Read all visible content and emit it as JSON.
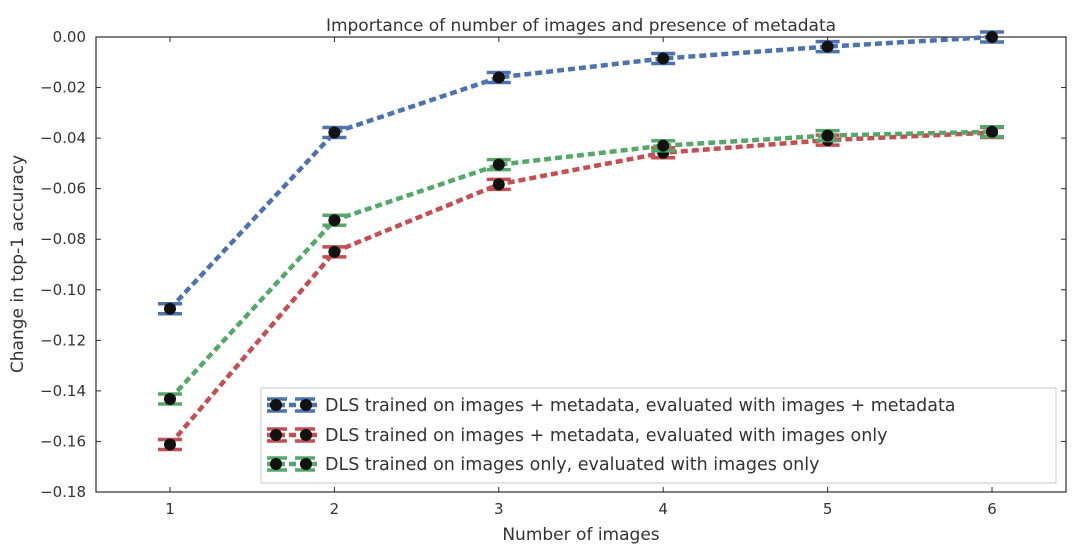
{
  "chart_data": {
    "type": "line",
    "title": "Importance of number of images and presence of metadata",
    "xlabel": "Number of images",
    "ylabel": "Change in top-1 accuracy",
    "x": [
      1,
      2,
      3,
      4,
      5,
      6
    ],
    "xlim": [
      0.55,
      6.45
    ],
    "ylim": [
      -0.18,
      0.0
    ],
    "yticks": [
      0.0,
      -0.02,
      -0.04,
      -0.06,
      -0.08,
      -0.1,
      -0.12,
      -0.14,
      -0.16,
      -0.18
    ],
    "ytick_labels": [
      "0.00",
      "−0.02",
      "−0.04",
      "−0.06",
      "−0.08",
      "−0.10",
      "−0.12",
      "−0.14",
      "−0.16",
      "−0.18"
    ],
    "xtick_labels": [
      "1",
      "2",
      "3",
      "4",
      "5",
      "6"
    ],
    "grid": false,
    "legend_position": "bottom-right",
    "series": [
      {
        "name": "DLS trained on images + metadata, evaluated with images + metadata",
        "color": "#4c72b0",
        "values": [
          -0.1075,
          -0.0378,
          -0.016,
          -0.0085,
          -0.0038,
          0.0
        ]
      },
      {
        "name": "DLS trained on images + metadata, evaluated with images only",
        "color": "#c44e52",
        "values": [
          -0.1612,
          -0.085,
          -0.0583,
          -0.0458,
          -0.0408,
          -0.0378
        ]
      },
      {
        "name": "DLS trained on images only, evaluated with images only",
        "color": "#55a868",
        "values": [
          -0.1432,
          -0.0725,
          -0.0505,
          -0.043,
          -0.039,
          -0.0375
        ]
      }
    ]
  }
}
